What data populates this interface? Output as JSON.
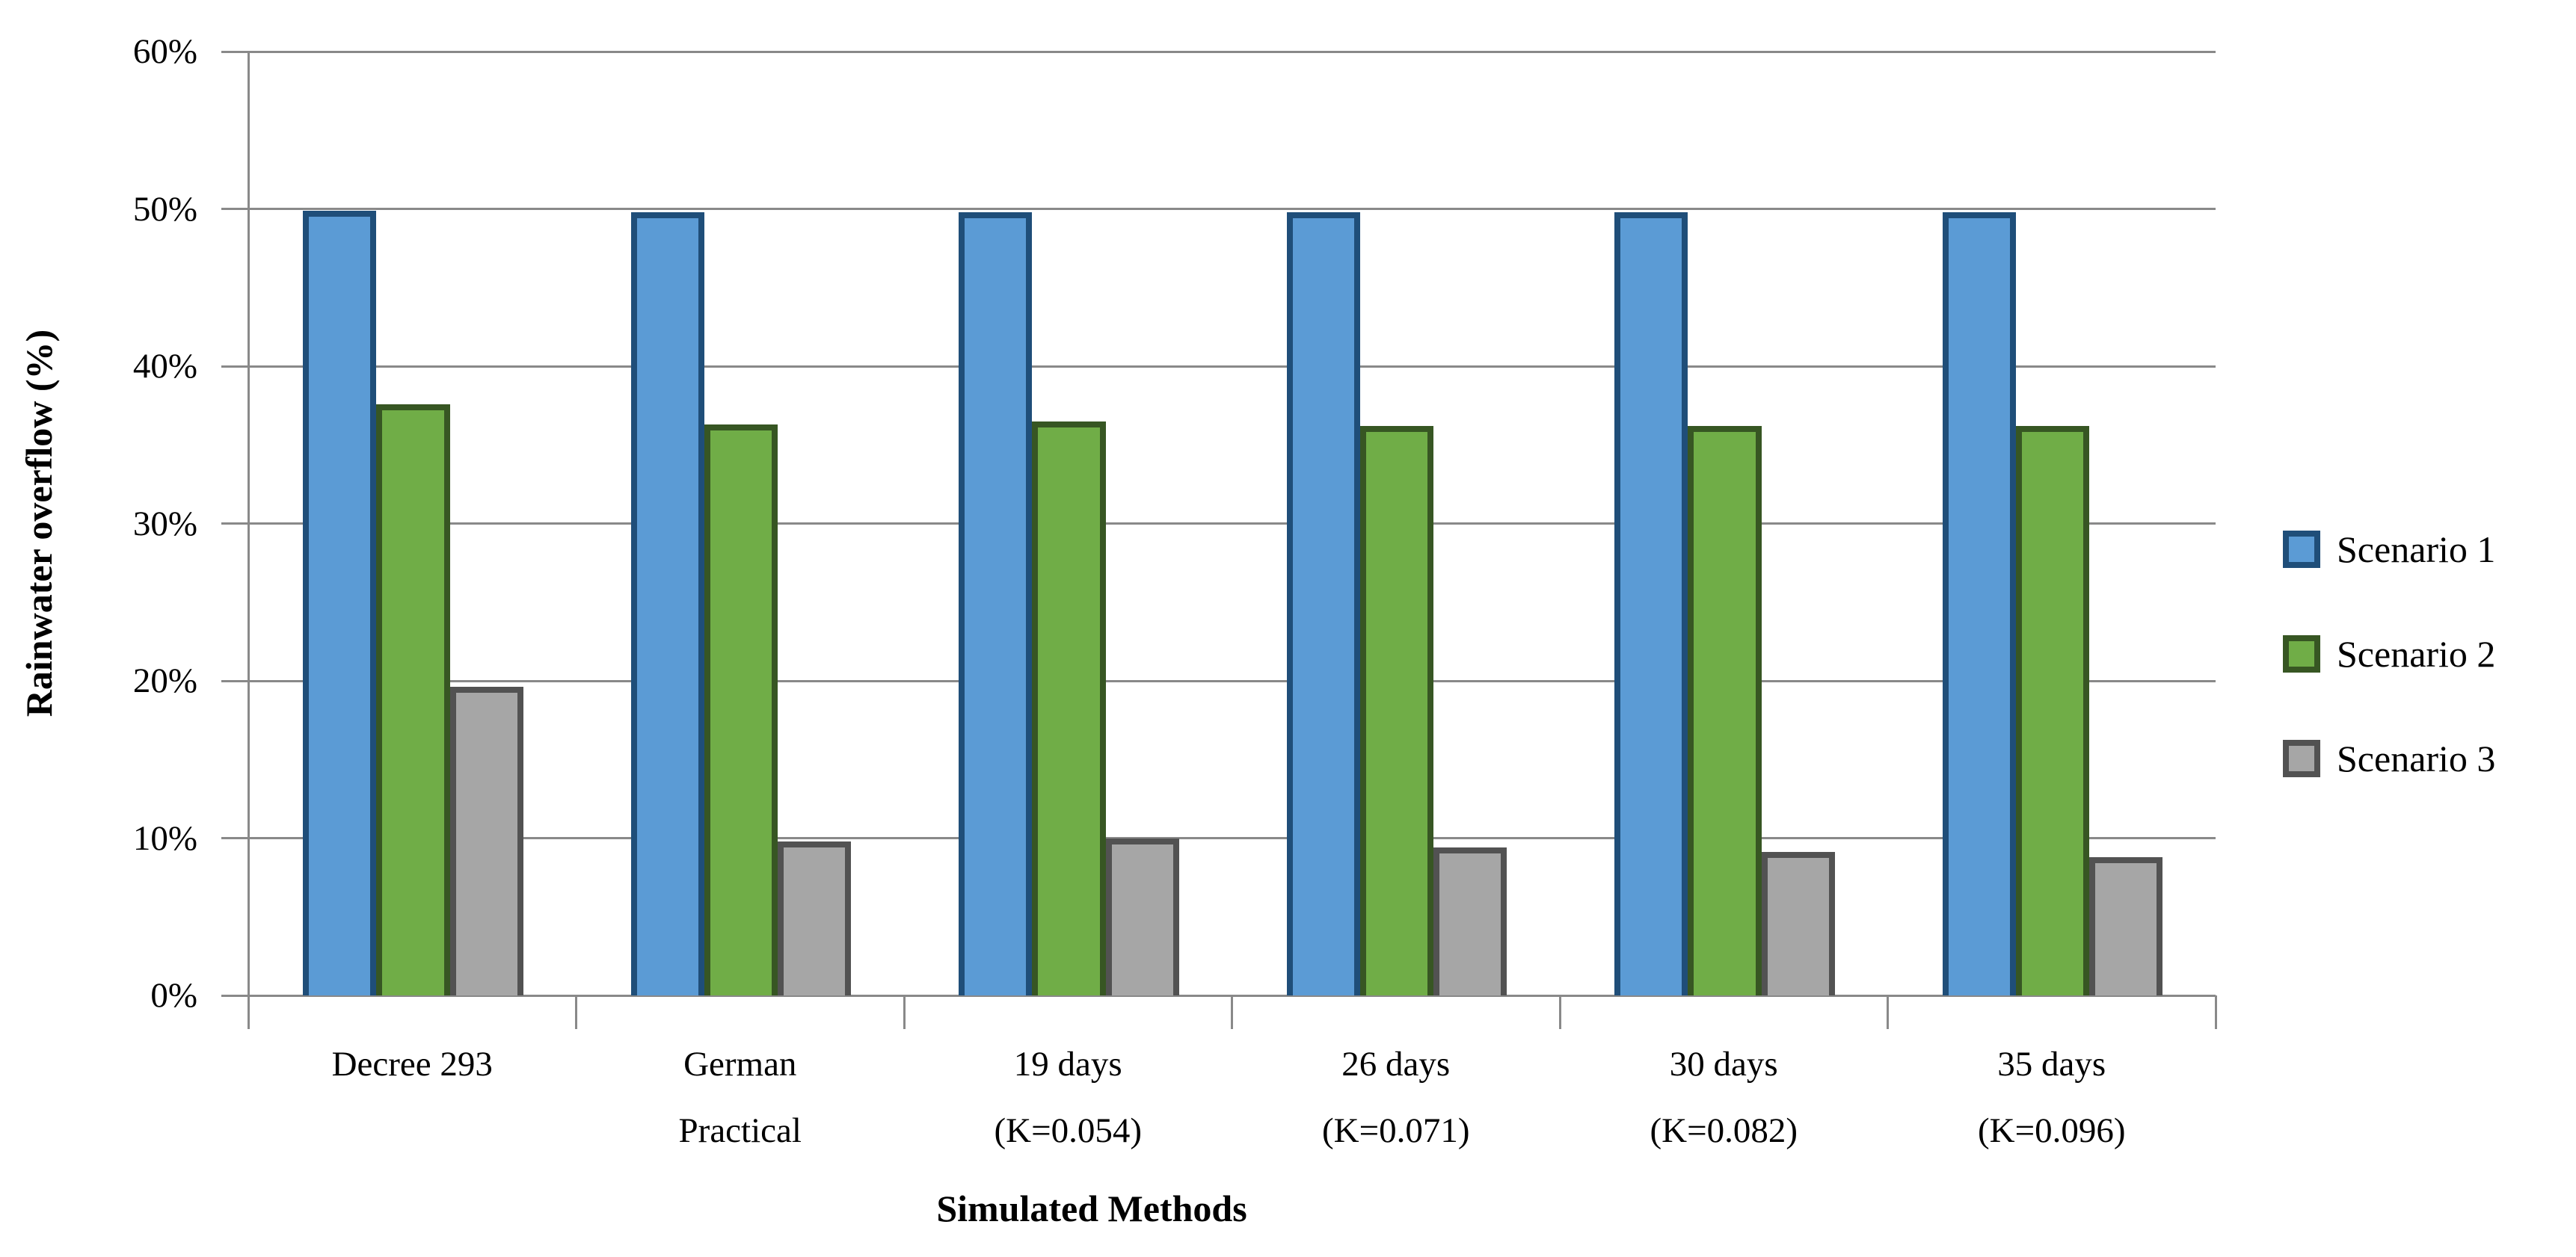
{
  "chart_data": {
    "type": "bar",
    "title": "",
    "xlabel": "Simulated Methods",
    "ylabel": "Rainwater overflow (%)",
    "categories": [
      [
        "Decree 293"
      ],
      [
        "German",
        "Practical"
      ],
      [
        "19 days",
        "(K=0.054)"
      ],
      [
        "26 days",
        "(K=0.071)"
      ],
      [
        "30 days",
        "(K=0.082)"
      ],
      [
        "35 days",
        "(K=0.096)"
      ]
    ],
    "series": [
      {
        "name": "Scenario 1",
        "color": "#5B9BD5",
        "border_color": "#1F4E79",
        "values": [
          49.9,
          49.8,
          49.8,
          49.8,
          49.8,
          49.8
        ]
      },
      {
        "name": "Scenario 2",
        "color": "#70AD47",
        "border_color": "#375623",
        "values": [
          37.6,
          36.3,
          36.5,
          36.2,
          36.2,
          36.2
        ]
      },
      {
        "name": "Scenario 3",
        "color": "#A6A6A6",
        "border_color": "#525252",
        "values": [
          19.6,
          9.8,
          10.0,
          9.4,
          9.1,
          8.8
        ]
      }
    ],
    "ylim": [
      0,
      60
    ],
    "ytick_values": [
      0,
      10,
      20,
      30,
      40,
      50,
      60
    ],
    "ytick_labels": [
      "0%",
      "10%",
      "20%",
      "30%",
      "40%",
      "50%",
      "60%"
    ],
    "grid": true,
    "gridline_color": "#898989",
    "axis_color": "#898989",
    "text_color": "#000000",
    "legend_position": "right"
  }
}
